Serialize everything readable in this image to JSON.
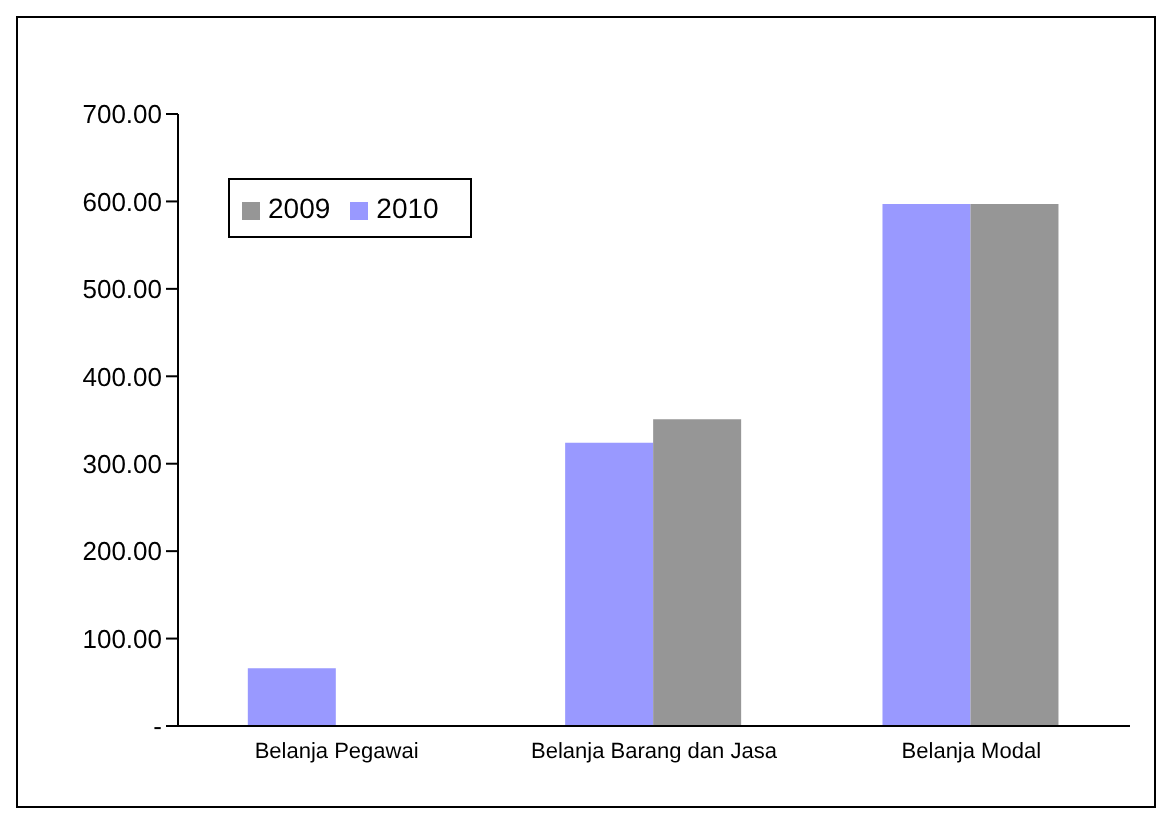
{
  "chart_data": {
    "type": "bar",
    "categories": [
      "Belanja Pegawai",
      "Belanja Barang dan Jasa",
      "Belanja Modal"
    ],
    "series": [
      {
        "name": "2010",
        "color": "#9999ff",
        "values": [
          66,
          324,
          597
        ]
      },
      {
        "name": "2009",
        "color": "#969696",
        "values": [
          0,
          351,
          597
        ]
      }
    ],
    "ylim": [
      0,
      700
    ],
    "yticks": [
      {
        "value": 0,
        "label": "-"
      },
      {
        "value": 100,
        "label": "100.00"
      },
      {
        "value": 200,
        "label": "200.00"
      },
      {
        "value": 300,
        "label": "300.00"
      },
      {
        "value": 400,
        "label": "400.00"
      },
      {
        "value": 500,
        "label": "500.00"
      },
      {
        "value": 600,
        "label": "600.00"
      },
      {
        "value": 700,
        "label": "700.00"
      }
    ],
    "grid": false,
    "legend": "top left"
  }
}
